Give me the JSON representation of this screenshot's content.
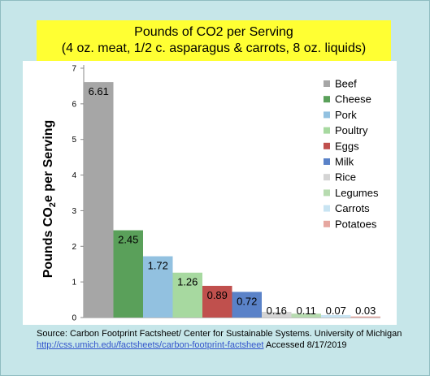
{
  "chart_data": {
    "type": "bar",
    "title": "Pounds of CO2 per Serving",
    "subtitle": "(4 oz. meat, 1/2 c. asparagus & carrots, 8 oz. liquids)",
    "ylabel_main": "Pounds CO",
    "ylabel_sub": "2",
    "ylabel_end": "e per Serving",
    "categories": [
      "Beef",
      "Cheese",
      "Pork",
      "Poultry",
      "Eggs",
      "Milk",
      "Rice",
      "Legumes",
      "Carrots",
      "Potatoes"
    ],
    "values": [
      6.61,
      2.45,
      1.72,
      1.26,
      0.89,
      0.72,
      0.16,
      0.11,
      0.07,
      0.03
    ],
    "value_labels": [
      "6.61",
      "2.45",
      "1.72",
      "1.26",
      "0.89",
      "0.72",
      "0.16",
      "0.11",
      "0.07",
      "0.03"
    ],
    "colors": [
      "#a6a6a6",
      "#5aa05a",
      "#92c1e0",
      "#a7d9a0",
      "#c0504d",
      "#5a82c8",
      "#d4d4d4",
      "#b7dbb0",
      "#c8e4f2",
      "#e6a7a0"
    ],
    "ylim": [
      0,
      7
    ],
    "yticks": [
      0,
      1,
      2,
      3,
      4,
      5,
      6,
      7
    ],
    "legend_position": "right",
    "grid": false
  },
  "source": {
    "prefix": "Source: Carbon Footprint Factsheet/ Center for Sustainable Systems. University of Michigan ",
    "link": "http://css.umich.edu/factsheets/carbon-footprint-factsheet",
    "suffix": "  Accessed 8/17/2019"
  }
}
